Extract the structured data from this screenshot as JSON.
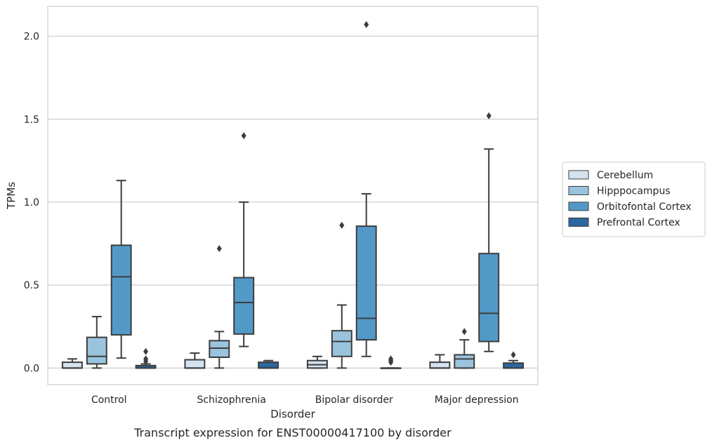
{
  "chart_data": {
    "type": "box",
    "caption": "Transcript expression for ENST00000417100 by disorder",
    "xlabel": "Disorder",
    "ylabel": "TPMs",
    "ylim": [
      -0.1,
      2.18
    ],
    "yticks": [
      0.0,
      0.5,
      1.0,
      1.5,
      2.0
    ],
    "ytick_labels": [
      "0.0",
      "0.5",
      "1.0",
      "1.5",
      "2.0"
    ],
    "grid": "horizontal",
    "legend_position": "right",
    "categories": [
      "Control",
      "Schizophrenia",
      "Bipolar disorder",
      "Major depression"
    ],
    "series": [
      {
        "name": "Cerebellum",
        "color": "#d4e3f0",
        "boxes": [
          {
            "whislo": 0.0,
            "q1": 0.0,
            "med": 0.0,
            "q3": 0.035,
            "whishi": 0.055,
            "fliers": []
          },
          {
            "whislo": 0.0,
            "q1": 0.0,
            "med": 0.0,
            "q3": 0.05,
            "whishi": 0.09,
            "fliers": []
          },
          {
            "whislo": 0.0,
            "q1": 0.0,
            "med": 0.02,
            "q3": 0.045,
            "whishi": 0.07,
            "fliers": []
          },
          {
            "whislo": 0.0,
            "q1": 0.0,
            "med": 0.0,
            "q3": 0.035,
            "whishi": 0.08,
            "fliers": []
          }
        ]
      },
      {
        "name": "Hipppocampus",
        "color": "#9ac4de",
        "boxes": [
          {
            "whislo": 0.0,
            "q1": 0.025,
            "med": 0.07,
            "q3": 0.185,
            "whishi": 0.31,
            "fliers": []
          },
          {
            "whislo": 0.0,
            "q1": 0.065,
            "med": 0.12,
            "q3": 0.165,
            "whishi": 0.22,
            "fliers": [
              0.72
            ]
          },
          {
            "whislo": 0.0,
            "q1": 0.07,
            "med": 0.16,
            "q3": 0.225,
            "whishi": 0.38,
            "fliers": [
              0.86
            ]
          },
          {
            "whislo": 0.0,
            "q1": 0.0,
            "med": 0.055,
            "q3": 0.08,
            "whishi": 0.17,
            "fliers": [
              0.22
            ]
          }
        ]
      },
      {
        "name": "Orbitofontal Cortex",
        "color": "#5299c7",
        "boxes": [
          {
            "whislo": 0.06,
            "q1": 0.2,
            "med": 0.55,
            "q3": 0.74,
            "whishi": 1.13,
            "fliers": []
          },
          {
            "whislo": 0.13,
            "q1": 0.205,
            "med": 0.395,
            "q3": 0.545,
            "whishi": 1.0,
            "fliers": [
              1.4
            ]
          },
          {
            "whislo": 0.07,
            "q1": 0.17,
            "med": 0.3,
            "q3": 0.855,
            "whishi": 1.05,
            "fliers": [
              2.07
            ]
          },
          {
            "whislo": 0.1,
            "q1": 0.16,
            "med": 0.33,
            "q3": 0.69,
            "whishi": 1.32,
            "fliers": [
              1.52
            ]
          }
        ]
      },
      {
        "name": "Prefrontal Cortex",
        "color": "#2b67a0",
        "boxes": [
          {
            "whislo": 0.0,
            "q1": 0.0,
            "med": 0.0,
            "q3": 0.015,
            "whishi": 0.025,
            "fliers": [
              0.04,
              0.055,
              0.1
            ]
          },
          {
            "whislo": 0.0,
            "q1": 0.0,
            "med": 0.0,
            "q3": 0.035,
            "whishi": 0.045,
            "fliers": []
          },
          {
            "whislo": 0.0,
            "q1": 0.0,
            "med": 0.0,
            "q3": 0.0,
            "whishi": 0.0,
            "fliers": [
              0.035,
              0.045,
              0.055
            ]
          },
          {
            "whislo": 0.0,
            "q1": 0.0,
            "med": 0.0,
            "q3": 0.03,
            "whishi": 0.045,
            "fliers": [
              0.08
            ]
          }
        ]
      }
    ]
  }
}
